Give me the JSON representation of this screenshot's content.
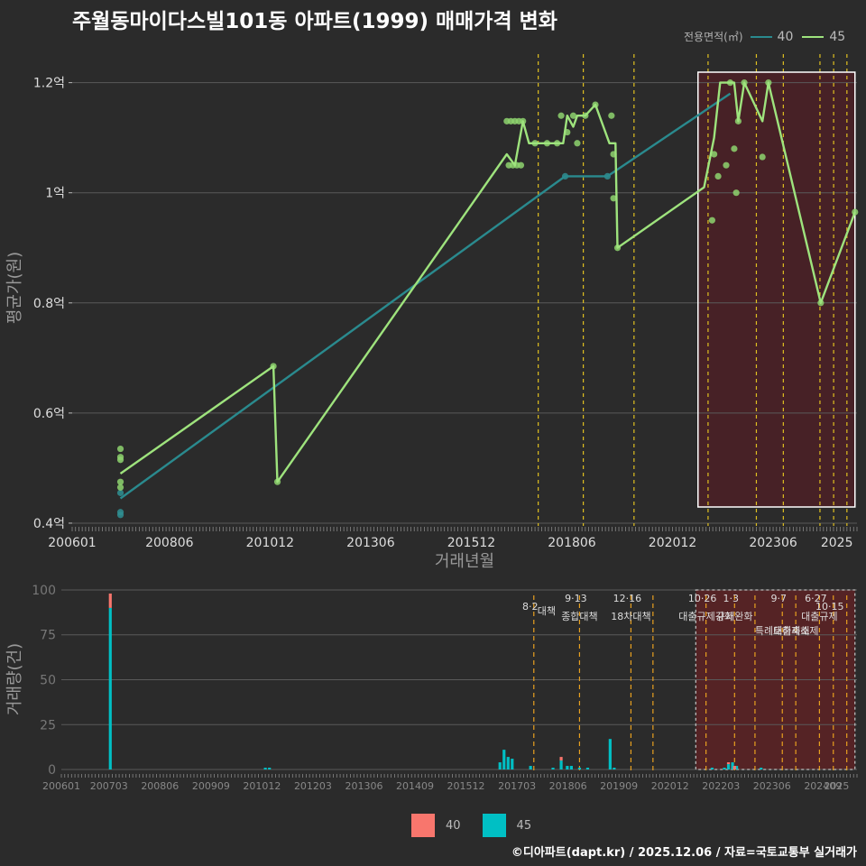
{
  "title": "주월동마이다스빌101동 아파트(1999) 매매가격 변화",
  "legend": {
    "title": "전용면적(㎡)",
    "items": [
      {
        "name": "40",
        "line_color": "#2a8a8e",
        "bar_color": "#f8766d"
      },
      {
        "name": "45",
        "line_color": "#9ee37d",
        "bar_color": "#00bfc4"
      }
    ]
  },
  "footer": "©디아파트(dapt.kr) / 2025.12.06 / 자료=국토교통부 실거래가",
  "chart_data": [
    {
      "type": "line",
      "title": "주월동마이다스빌101동 아파트(1999) 매매가격 변화",
      "xlabel": "거래년월",
      "ylabel": "평균가(원)",
      "xlim": [
        2006.0,
        2025.5
      ],
      "ylim": [
        0.395,
        1.26
      ],
      "x_ticks": [
        {
          "x": 2006.0,
          "label": "200601"
        },
        {
          "x": 2008.417,
          "label": "200806"
        },
        {
          "x": 2010.917,
          "label": "201012"
        },
        {
          "x": 2013.417,
          "label": "201306"
        },
        {
          "x": 2015.917,
          "label": "201512"
        },
        {
          "x": 2018.417,
          "label": "201806"
        },
        {
          "x": 2020.917,
          "label": "202012"
        },
        {
          "x": 2023.417,
          "label": "202306"
        },
        {
          "x": 2025.0,
          "label": "2025"
        }
      ],
      "y_ticks": [
        {
          "y": 0.4,
          "label": "0.4억"
        },
        {
          "y": 0.6,
          "label": "0.6억"
        },
        {
          "y": 0.8,
          "label": "0.8억"
        },
        {
          "y": 1.0,
          "label": "1억"
        },
        {
          "y": 1.2,
          "label": "1.2억"
        }
      ],
      "highlight_range": [
        2021.55,
        2025.45
      ],
      "policy_lines": [
        2017.58,
        2018.7,
        2019.96,
        2021.8,
        2023.0,
        2023.67,
        2024.58,
        2024.92,
        2025.25
      ],
      "series": [
        {
          "name": "40",
          "points": [
            [
              2007.2,
              0.445
            ],
            [
              2018.25,
              1.03
            ],
            [
              2019.3,
              1.03
            ],
            [
              2022.35,
              1.18
            ]
          ]
        },
        {
          "name": "45",
          "points": [
            [
              2007.2,
              0.49
            ],
            [
              2011.0,
              0.685
            ],
            [
              2011.1,
              0.475
            ],
            [
              2016.8,
              1.07
            ],
            [
              2017.0,
              1.05
            ],
            [
              2017.2,
              1.13
            ],
            [
              2017.35,
              1.09
            ],
            [
              2017.8,
              1.09
            ],
            [
              2018.2,
              1.09
            ],
            [
              2018.3,
              1.14
            ],
            [
              2018.45,
              1.12
            ],
            [
              2018.55,
              1.14
            ],
            [
              2018.75,
              1.14
            ],
            [
              2019.0,
              1.16
            ],
            [
              2019.35,
              1.09
            ],
            [
              2019.5,
              1.09
            ],
            [
              2019.55,
              0.9
            ],
            [
              2021.7,
              1.01
            ],
            [
              2021.95,
              1.1
            ],
            [
              2022.1,
              1.2
            ],
            [
              2022.3,
              1.2
            ],
            [
              2022.45,
              1.2
            ],
            [
              2022.55,
              1.13
            ],
            [
              2022.7,
              1.2
            ],
            [
              2023.15,
              1.13
            ],
            [
              2023.3,
              1.2
            ],
            [
              2024.6,
              0.8
            ],
            [
              2025.45,
              0.965
            ]
          ]
        }
      ],
      "scatter": [
        {
          "series": "40",
          "points": [
            [
              2007.2,
              0.455
            ],
            [
              2007.2,
              0.42
            ],
            [
              2007.2,
              0.415
            ],
            [
              2018.25,
              1.03
            ],
            [
              2019.3,
              1.03
            ]
          ]
        },
        {
          "series": "45",
          "points": [
            [
              2007.2,
              0.535
            ],
            [
              2007.2,
              0.52
            ],
            [
              2007.2,
              0.515
            ],
            [
              2007.2,
              0.475
            ],
            [
              2007.2,
              0.465
            ],
            [
              2011.0,
              0.685
            ],
            [
              2011.1,
              0.475
            ],
            [
              2016.8,
              1.13
            ],
            [
              2016.85,
              1.05
            ],
            [
              2016.9,
              1.13
            ],
            [
              2016.95,
              1.05
            ],
            [
              2017.0,
              1.13
            ],
            [
              2017.05,
              1.05
            ],
            [
              2017.1,
              1.13
            ],
            [
              2017.15,
              1.05
            ],
            [
              2017.2,
              1.13
            ],
            [
              2017.5,
              1.09
            ],
            [
              2017.8,
              1.09
            ],
            [
              2018.05,
              1.09
            ],
            [
              2018.15,
              1.14
            ],
            [
              2018.3,
              1.11
            ],
            [
              2018.45,
              1.14
            ],
            [
              2018.55,
              1.09
            ],
            [
              2018.75,
              1.14
            ],
            [
              2019.0,
              1.16
            ],
            [
              2019.4,
              1.14
            ],
            [
              2019.45,
              1.07
            ],
            [
              2019.45,
              0.99
            ],
            [
              2019.55,
              0.9
            ],
            [
              2021.9,
              0.95
            ],
            [
              2021.95,
              1.07
            ],
            [
              2022.05,
              1.03
            ],
            [
              2022.25,
              1.05
            ],
            [
              2022.35,
              1.2
            ],
            [
              2022.45,
              1.08
            ],
            [
              2022.5,
              1.0
            ],
            [
              2022.55,
              1.13
            ],
            [
              2022.7,
              1.2
            ],
            [
              2023.15,
              1.065
            ],
            [
              2023.3,
              1.2
            ],
            [
              2024.6,
              0.8
            ],
            [
              2025.45,
              0.965
            ]
          ]
        }
      ]
    },
    {
      "type": "bar",
      "xlabel": "",
      "ylabel": "거래량(건)",
      "xlim": [
        2006.0,
        2025.5
      ],
      "ylim": [
        -2,
        102
      ],
      "y_ticks": [
        0,
        25,
        50,
        75,
        100
      ],
      "x_ticks": [
        {
          "x": 2006.0,
          "label": "200601"
        },
        {
          "x": 2007.167,
          "label": "200703"
        },
        {
          "x": 2008.417,
          "label": "200806"
        },
        {
          "x": 2009.667,
          "label": "200909"
        },
        {
          "x": 2010.917,
          "label": "201012"
        },
        {
          "x": 2012.167,
          "label": "201203"
        },
        {
          "x": 2013.417,
          "label": "201306"
        },
        {
          "x": 2014.667,
          "label": "201409"
        },
        {
          "x": 2015.917,
          "label": "201512"
        },
        {
          "x": 2017.167,
          "label": "201703"
        },
        {
          "x": 2018.417,
          "label": "201806"
        },
        {
          "x": 2019.667,
          "label": "201909"
        },
        {
          "x": 2020.917,
          "label": "202012"
        },
        {
          "x": 2022.167,
          "label": "202203"
        },
        {
          "x": 2023.417,
          "label": "202306"
        },
        {
          "x": 2024.667,
          "label": "202409"
        },
        {
          "x": 2025.0,
          "label": "2025"
        }
      ],
      "highlight_range": [
        2021.55,
        2025.45
      ],
      "series": [
        {
          "name": "40",
          "values": [
            [
              2007.2,
              8
            ],
            [
              2018.25,
              2
            ],
            [
              2022.35,
              1
            ],
            [
              2022.5,
              2
            ]
          ]
        },
        {
          "name": "45",
          "values": [
            [
              2007.2,
              90
            ],
            [
              2011.0,
              1
            ],
            [
              2011.1,
              1
            ],
            [
              2016.75,
              4
            ],
            [
              2016.85,
              11
            ],
            [
              2016.95,
              7
            ],
            [
              2017.05,
              6
            ],
            [
              2017.5,
              2
            ],
            [
              2018.05,
              1
            ],
            [
              2018.25,
              5
            ],
            [
              2018.4,
              2
            ],
            [
              2018.5,
              2
            ],
            [
              2018.7,
              1
            ],
            [
              2018.9,
              1
            ],
            [
              2019.45,
              17
            ],
            [
              2019.55,
              1
            ],
            [
              2021.95,
              1
            ],
            [
              2022.25,
              1
            ],
            [
              2022.35,
              3
            ],
            [
              2022.45,
              4
            ],
            [
              2022.55,
              2
            ],
            [
              2023.15,
              1
            ]
          ]
        }
      ],
      "policy_events": [
        {
          "x": 2017.58,
          "date": "8·2",
          "label": "대책",
          "row": 0
        },
        {
          "x": 2018.7,
          "date": "9·13",
          "label": "종합대책",
          "row": 1
        },
        {
          "x": 2019.96,
          "date": "12·16",
          "label": "18차대책",
          "row": 1
        },
        {
          "x": 2020.5,
          "date": "",
          "label": "",
          "row": 0
        },
        {
          "x": 2021.8,
          "date": "10·26",
          "label": "대출규제강화",
          "row": 1
        },
        {
          "x": 2022.5,
          "date": "1·3",
          "label": "규제완화",
          "row": 1
        },
        {
          "x": 2023.0,
          "date": "",
          "label": "",
          "row": 0
        },
        {
          "x": 2023.67,
          "date": "9·7",
          "label": "특례대출축소",
          "row": 2
        },
        {
          "x": 2024.0,
          "date": "",
          "label": "토허제해제",
          "row": 2
        },
        {
          "x": 2024.58,
          "date": "6·27",
          "label": "대출규제",
          "row": 1
        },
        {
          "x": 2024.92,
          "date": "10·15",
          "label": "",
          "row": 0
        },
        {
          "x": 2025.25,
          "date": "",
          "label": "",
          "row": 0
        }
      ],
      "top_date_labels": [
        "8·2",
        "9·13",
        "12·16",
        "10·26",
        "1·3",
        "9·7",
        "6·27",
        "10·15"
      ],
      "top_text_labels": [
        "대책",
        "종합대책",
        "18차대책",
        "대출규제강화",
        "규제완화",
        "특례대출축소",
        "토허제해제",
        "대출규제"
      ]
    }
  ]
}
